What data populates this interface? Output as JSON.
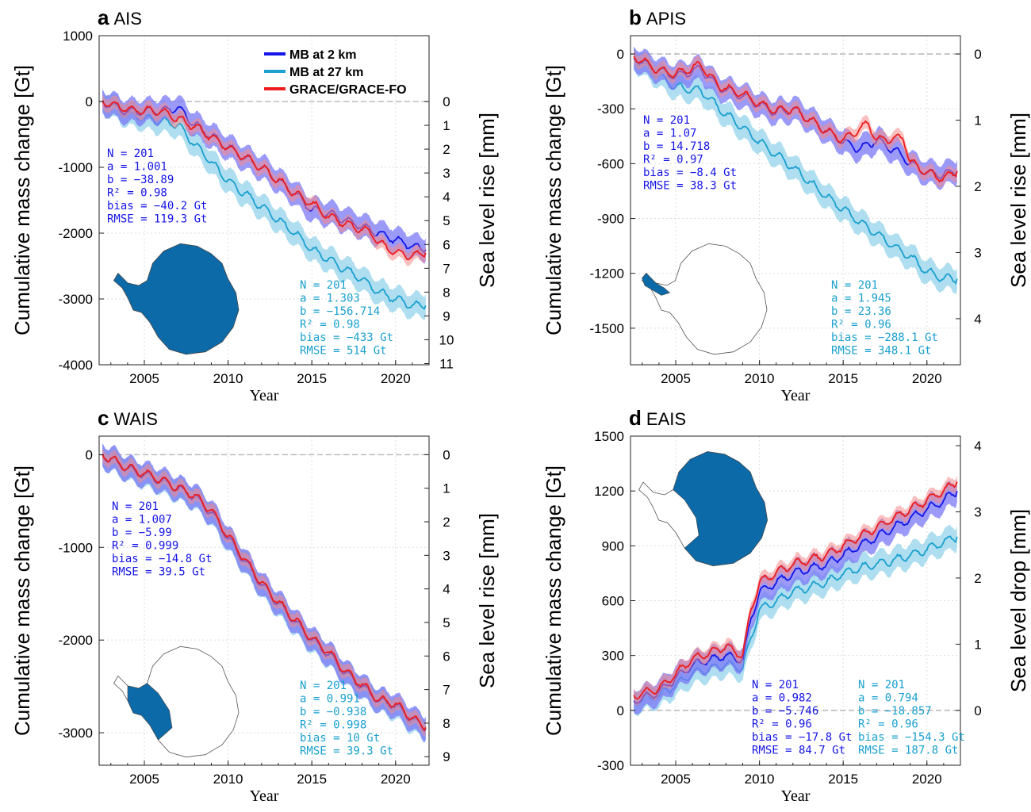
{
  "colors": {
    "mb2": "#1515e8",
    "mb2_band": "#7a78f5",
    "mb27": "#1aa0cf",
    "mb27_band": "#93d3ea",
    "grace": "#ee1c1c",
    "grace_band": "#f58a8a",
    "map_fill": "#0d6aa8",
    "zero_line": "#bbbbbb"
  },
  "legend": {
    "items": [
      {
        "label": "MB at 2 km",
        "color": "#1515e8"
      },
      {
        "label": "MB at 27 km",
        "color": "#1aa0cf"
      },
      {
        "label": "GRACE/GRACE-FO",
        "color": "#ee1c1c"
      }
    ]
  },
  "chart_data": [
    {
      "type": "line",
      "panel_letter": "a",
      "region": "AIS",
      "xlabel": "Year",
      "ylabel": "Cumulative mass change [Gt]",
      "ylabel_right": "Sea level rise [mm]",
      "xlim": [
        2002.3,
        2022.0
      ],
      "ylim": [
        -4000,
        1000
      ],
      "x_ticks": [
        "2005",
        "2010",
        "2015",
        "2020"
      ],
      "y_ticks": [
        "1000",
        "0",
        "-1000",
        "-2000",
        "-3000",
        "-4000"
      ],
      "y_right_ticks": [
        "0",
        "1",
        "2",
        "3",
        "4",
        "5",
        "6",
        "7",
        "8",
        "9",
        "10",
        "11"
      ],
      "series": [
        {
          "name": "MB at 2 km",
          "x": [
            2002.5,
            2004,
            2006,
            2007,
            2008,
            2010,
            2012,
            2014,
            2015,
            2016,
            2018,
            2019,
            2020,
            2021,
            2021.8
          ],
          "values": [
            0,
            -150,
            -140,
            -100,
            -350,
            -700,
            -1000,
            -1400,
            -1650,
            -1700,
            -1900,
            -2000,
            -2100,
            -2200,
            -2250
          ]
        },
        {
          "name": "MB at 27 km",
          "x": [
            2002.5,
            2004,
            2006,
            2007,
            2008,
            2010,
            2012,
            2014,
            2015,
            2016,
            2018,
            2019,
            2020,
            2021,
            2021.8
          ],
          "values": [
            0,
            -200,
            -300,
            -350,
            -650,
            -1200,
            -1600,
            -2000,
            -2250,
            -2400,
            -2700,
            -2900,
            -3000,
            -3100,
            -3100
          ]
        },
        {
          "name": "GRACE/GRACE-FO",
          "x": [
            2002.5,
            2004,
            2006,
            2008,
            2010,
            2012,
            2014,
            2015,
            2016,
            2017.5,
            2018.6,
            2019,
            2020,
            2021,
            2021.8
          ],
          "values": [
            0,
            -120,
            -150,
            -380,
            -700,
            -1000,
            -1400,
            -1550,
            -1750,
            -1900,
            -2000,
            -2150,
            -2300,
            -2350,
            -2300
          ]
        }
      ],
      "stats": [
        {
          "lines": [
            "N  = 201",
            "a  = 1.001",
            "b  = −38.89",
            "R² = 0.98",
            "bias = −40.2 Gt",
            "RMSE = 119.3 Gt"
          ],
          "color": "mb2"
        },
        {
          "lines": [
            "N  = 201",
            "a  = 1.303",
            "b  = −156.714",
            "R² = 0.98",
            "bias = −433 Gt",
            "RMSE = 514 Gt"
          ],
          "color": "mb27"
        }
      ]
    },
    {
      "type": "line",
      "panel_letter": "b",
      "region": "APIS",
      "xlabel": "Year",
      "ylabel": "Cumulative mass change [Gt]",
      "ylabel_right": "Sea level rise [mm]",
      "xlim": [
        2002.3,
        2022.0
      ],
      "ylim": [
        -1700,
        100
      ],
      "x_ticks": [
        "2005",
        "2010",
        "2015",
        "2020"
      ],
      "y_ticks": [
        "0",
        "-300",
        "-600",
        "-900",
        "-1200",
        "-1500"
      ],
      "y_right_ticks": [
        "0",
        "1",
        "2",
        "3",
        "4"
      ],
      "series": [
        {
          "name": "MB at 2 km",
          "x": [
            2002.5,
            2004,
            2005,
            2006.5,
            2007.5,
            2009,
            2010,
            2011,
            2012,
            2014,
            2015,
            2016,
            2017,
            2018.6,
            2019,
            2020,
            2021,
            2021.8
          ],
          "values": [
            -20,
            -90,
            -120,
            -80,
            -180,
            -230,
            -280,
            -320,
            -300,
            -420,
            -480,
            -520,
            -470,
            -560,
            -600,
            -650,
            -660,
            -640
          ]
        },
        {
          "name": "MB at 27 km",
          "x": [
            2002.5,
            2004,
            2005,
            2006.5,
            2008,
            2010,
            2012,
            2014,
            2016,
            2018,
            2019,
            2020,
            2021,
            2021.8
          ],
          "values": [
            -20,
            -120,
            -180,
            -200,
            -330,
            -480,
            -620,
            -780,
            -920,
            -1050,
            -1110,
            -1190,
            -1230,
            -1230
          ]
        },
        {
          "name": "GRACE/GRACE-FO",
          "x": [
            2002.5,
            2004,
            2005,
            2006.5,
            2007.5,
            2009,
            2010,
            2011,
            2012,
            2014,
            2015,
            2016.5,
            2017,
            2018.6,
            2019,
            2020,
            2021,
            2021.8
          ],
          "values": [
            -10,
            -90,
            -110,
            -60,
            -170,
            -220,
            -270,
            -310,
            -300,
            -420,
            -470,
            -380,
            -470,
            -460,
            -590,
            -650,
            -680,
            -640
          ]
        }
      ],
      "stats": [
        {
          "lines": [
            "N  = 201",
            "a  = 1.07",
            "b  = 14.718",
            "R² = 0.97",
            "bias = −8.4 Gt",
            "RMSE = 38.3 Gt"
          ],
          "color": "mb2"
        },
        {
          "lines": [
            "N  = 201",
            "a  = 1.945",
            "b  = 23.36",
            "R² = 0.96",
            "bias = −288.1 Gt",
            "RMSE = 348.1 Gt"
          ],
          "color": "mb27"
        }
      ]
    },
    {
      "type": "line",
      "panel_letter": "c",
      "region": "WAIS",
      "xlabel": "Year",
      "ylabel": "Cumulative mass change [Gt]",
      "ylabel_right": "Sea level rise [mm]",
      "xlim": [
        2002.3,
        2022.0
      ],
      "ylim": [
        -3350,
        200
      ],
      "x_ticks": [
        "2005",
        "2010",
        "2015",
        "2020"
      ],
      "y_ticks": [
        "0",
        "-1000",
        "-2000",
        "-3000"
      ],
      "y_right_ticks": [
        "0",
        "1",
        "2",
        "3",
        "4",
        "5",
        "6",
        "7",
        "8",
        "9"
      ],
      "series": [
        {
          "name": "MB at 2 km",
          "x": [
            2002.5,
            2004,
            2006,
            2008,
            2009,
            2010,
            2011,
            2012,
            2013,
            2014,
            2015,
            2016,
            2017,
            2018,
            2019,
            2020,
            2021,
            2021.8
          ],
          "values": [
            0,
            -150,
            -280,
            -450,
            -620,
            -900,
            -1150,
            -1400,
            -1600,
            -1800,
            -2000,
            -2150,
            -2350,
            -2500,
            -2650,
            -2700,
            -2850,
            -2950
          ]
        },
        {
          "name": "MB at 27 km",
          "x": [
            2002.5,
            2004,
            2006,
            2008,
            2009,
            2010,
            2011,
            2012,
            2013,
            2014,
            2015,
            2016,
            2017,
            2018,
            2019,
            2020,
            2021,
            2021.8
          ],
          "values": [
            0,
            -160,
            -290,
            -460,
            -630,
            -910,
            -1160,
            -1410,
            -1620,
            -1810,
            -2010,
            -2160,
            -2360,
            -2510,
            -2660,
            -2720,
            -2870,
            -2960
          ]
        },
        {
          "name": "GRACE/GRACE-FO",
          "x": [
            2002.5,
            2004,
            2006,
            2008,
            2009,
            2010,
            2011,
            2012,
            2013,
            2014,
            2015,
            2016,
            2017,
            2018,
            2019,
            2020,
            2021,
            2021.8
          ],
          "values": [
            0,
            -140,
            -270,
            -440,
            -600,
            -880,
            -1130,
            -1380,
            -1590,
            -1780,
            -1980,
            -2130,
            -2330,
            -2480,
            -2640,
            -2690,
            -2840,
            -2940
          ]
        }
      ],
      "stats": [
        {
          "lines": [
            "N  = 201",
            "a  = 1.007",
            "b  = −5.99",
            "R² = 0.999",
            "bias = −14.8 Gt",
            "RMSE = 39.5 Gt"
          ],
          "color": "mb2"
        },
        {
          "lines": [
            "N  = 201",
            "a  = 0.991",
            "b  = −0.938",
            "R² = 0.998",
            "bias = 10 Gt",
            "RMSE = 39.3 Gt"
          ],
          "color": "mb27"
        }
      ]
    },
    {
      "type": "line",
      "panel_letter": "d",
      "region": "EAIS",
      "xlabel": "Year",
      "ylabel": "Cumulative mass change [Gt]",
      "ylabel_right": "Sea level drop [mm]",
      "xlim": [
        2002.3,
        2022.0
      ],
      "ylim": [
        -300,
        1500
      ],
      "x_ticks": [
        "2005",
        "2010",
        "2015",
        "2020"
      ],
      "y_ticks": [
        "1500",
        "1200",
        "900",
        "600",
        "300",
        "0",
        "-300"
      ],
      "y_right_ticks": [
        "0",
        "1",
        "2",
        "3",
        "4"
      ],
      "series": [
        {
          "name": "MB at 2 km",
          "x": [
            2002.5,
            2004,
            2006,
            2008,
            2009,
            2009.5,
            2010,
            2011,
            2012,
            2014,
            2015,
            2016,
            2017,
            2018,
            2019,
            2020,
            2021,
            2021.8
          ],
          "values": [
            50,
            100,
            250,
            300,
            280,
            500,
            650,
            700,
            750,
            800,
            850,
            900,
            950,
            1000,
            1050,
            1100,
            1150,
            1200
          ]
        },
        {
          "name": "MB at 27 km",
          "x": [
            2002.5,
            2004,
            2006,
            2008,
            2009,
            2009.5,
            2010,
            2011,
            2012,
            2014,
            2015,
            2016,
            2017,
            2018,
            2019,
            2020,
            2021,
            2021.8
          ],
          "values": [
            50,
            80,
            200,
            250,
            230,
            400,
            550,
            600,
            650,
            700,
            750,
            780,
            800,
            820,
            850,
            880,
            920,
            950
          ]
        },
        {
          "name": "GRACE/GRACE-FO",
          "x": [
            2002.5,
            2004,
            2006,
            2008,
            2009,
            2009.5,
            2010,
            2011,
            2012,
            2014,
            2015,
            2016,
            2017,
            2018,
            2019,
            2020,
            2021,
            2021.8
          ],
          "values": [
            80,
            120,
            280,
            350,
            300,
            550,
            700,
            750,
            800,
            850,
            900,
            950,
            1000,
            1050,
            1100,
            1150,
            1200,
            1250
          ]
        }
      ],
      "stats": [
        {
          "lines": [
            "N  = 201",
            "a  = 0.982",
            "b  = −5.746",
            "R² = 0.96",
            "bias = −17.8 Gt",
            "RMSE = 84.7 Gt"
          ],
          "color": "mb2"
        },
        {
          "lines": [
            "N  = 201",
            "a  = 0.794",
            "b  = −18.857",
            "R² = 0.96",
            "bias = −154.3 Gt",
            "RMSE = 187.8 Gt"
          ],
          "color": "mb27"
        }
      ]
    }
  ]
}
